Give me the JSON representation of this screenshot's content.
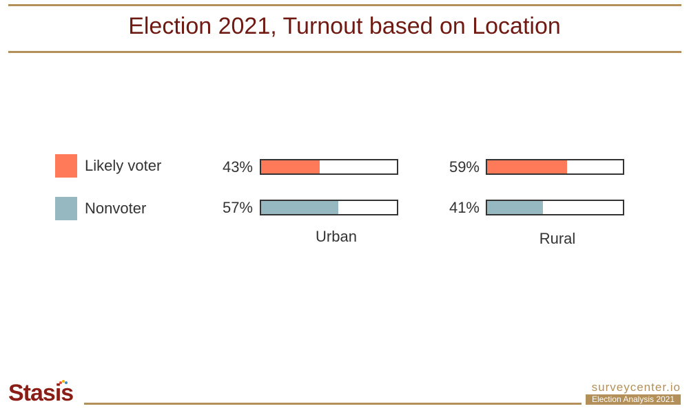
{
  "title": "Election 2021, Turnout based on Location",
  "chart_data": {
    "type": "bar",
    "title": "Election 2021, Turnout based on Location",
    "categories": [
      "Urban",
      "Rural"
    ],
    "series": [
      {
        "name": "Likely voter",
        "color": "#fe7a59",
        "values": [
          43,
          59
        ],
        "labels": [
          "43%",
          "59%"
        ]
      },
      {
        "name": "Nonvoter",
        "color": "#96b8c1",
        "values": [
          57,
          41
        ],
        "labels": [
          "57%",
          "41%"
        ]
      }
    ],
    "ylim": [
      0,
      100
    ],
    "legend": "left",
    "grid": false
  },
  "footer": {
    "logo_text": "Stasis",
    "brand": "surveycenter.io",
    "badge": "Election Analysis 2021"
  }
}
